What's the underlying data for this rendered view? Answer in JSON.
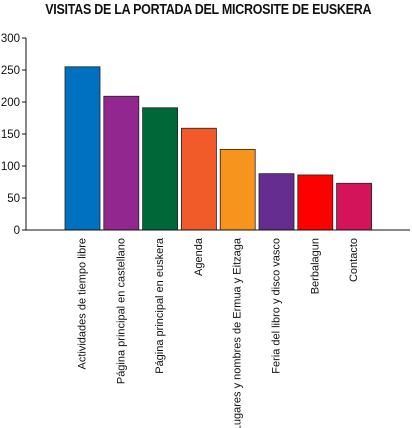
{
  "chart_data": {
    "type": "bar",
    "title": "VISITAS DE LA PORTADA DEL MICROSITE DE EUSKERA",
    "xlabel": "",
    "ylabel": "",
    "ylim": [
      0,
      300
    ],
    "yticks": [
      0,
      50,
      100,
      150,
      200,
      250,
      300
    ],
    "grid": false,
    "legend": "none",
    "categories": [
      "Actividades de tiempo libre",
      "Página principal en castellano",
      "Página principal en euskera",
      "Agenda",
      "Lugares y nombres de Ermua y Eitzaga",
      "Feria del libro y disco vasco",
      "Berbalagun",
      "Contacto"
    ],
    "values": [
      255,
      209,
      191,
      159,
      126,
      88,
      86,
      73
    ],
    "colors": [
      "#0070c0",
      "#92278f",
      "#006838",
      "#f15a29",
      "#f7941d",
      "#662d91",
      "#ff0000",
      "#d4145a"
    ]
  }
}
